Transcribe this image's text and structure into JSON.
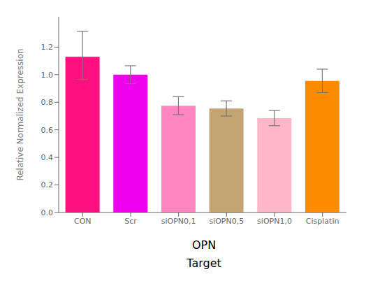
{
  "chart_data": {
    "type": "bar",
    "ylabel": "Relative Normalized Expression",
    "annotations": [
      "OPN",
      "Target"
    ],
    "categories": [
      "CON",
      "Scr",
      "siOPN0,1",
      "siOPN0,5",
      "siOPN1,0",
      "Cisplatin"
    ],
    "values": [
      1.13,
      1.0,
      0.775,
      0.755,
      0.685,
      0.955
    ],
    "errors": {
      "plus": [
        0.185,
        0.065,
        0.065,
        0.055,
        0.055,
        0.085
      ],
      "minus": [
        0.165,
        0.065,
        0.065,
        0.055,
        0.055,
        0.085
      ],
      "color": "#777777"
    },
    "colors": [
      "#FF1080",
      "#EE00EE",
      "#FF85C0",
      "#C4A472",
      "#FFB6C8",
      "#FF8C00"
    ],
    "ylim": [
      0.0,
      1.42
    ],
    "yticks": [
      {
        "value": 0,
        "label": "0.0"
      },
      0.2,
      0.4,
      0.6,
      0.8,
      {
        "value": 1,
        "label": "1.0"
      },
      1.2
    ],
    "grid": false
  }
}
